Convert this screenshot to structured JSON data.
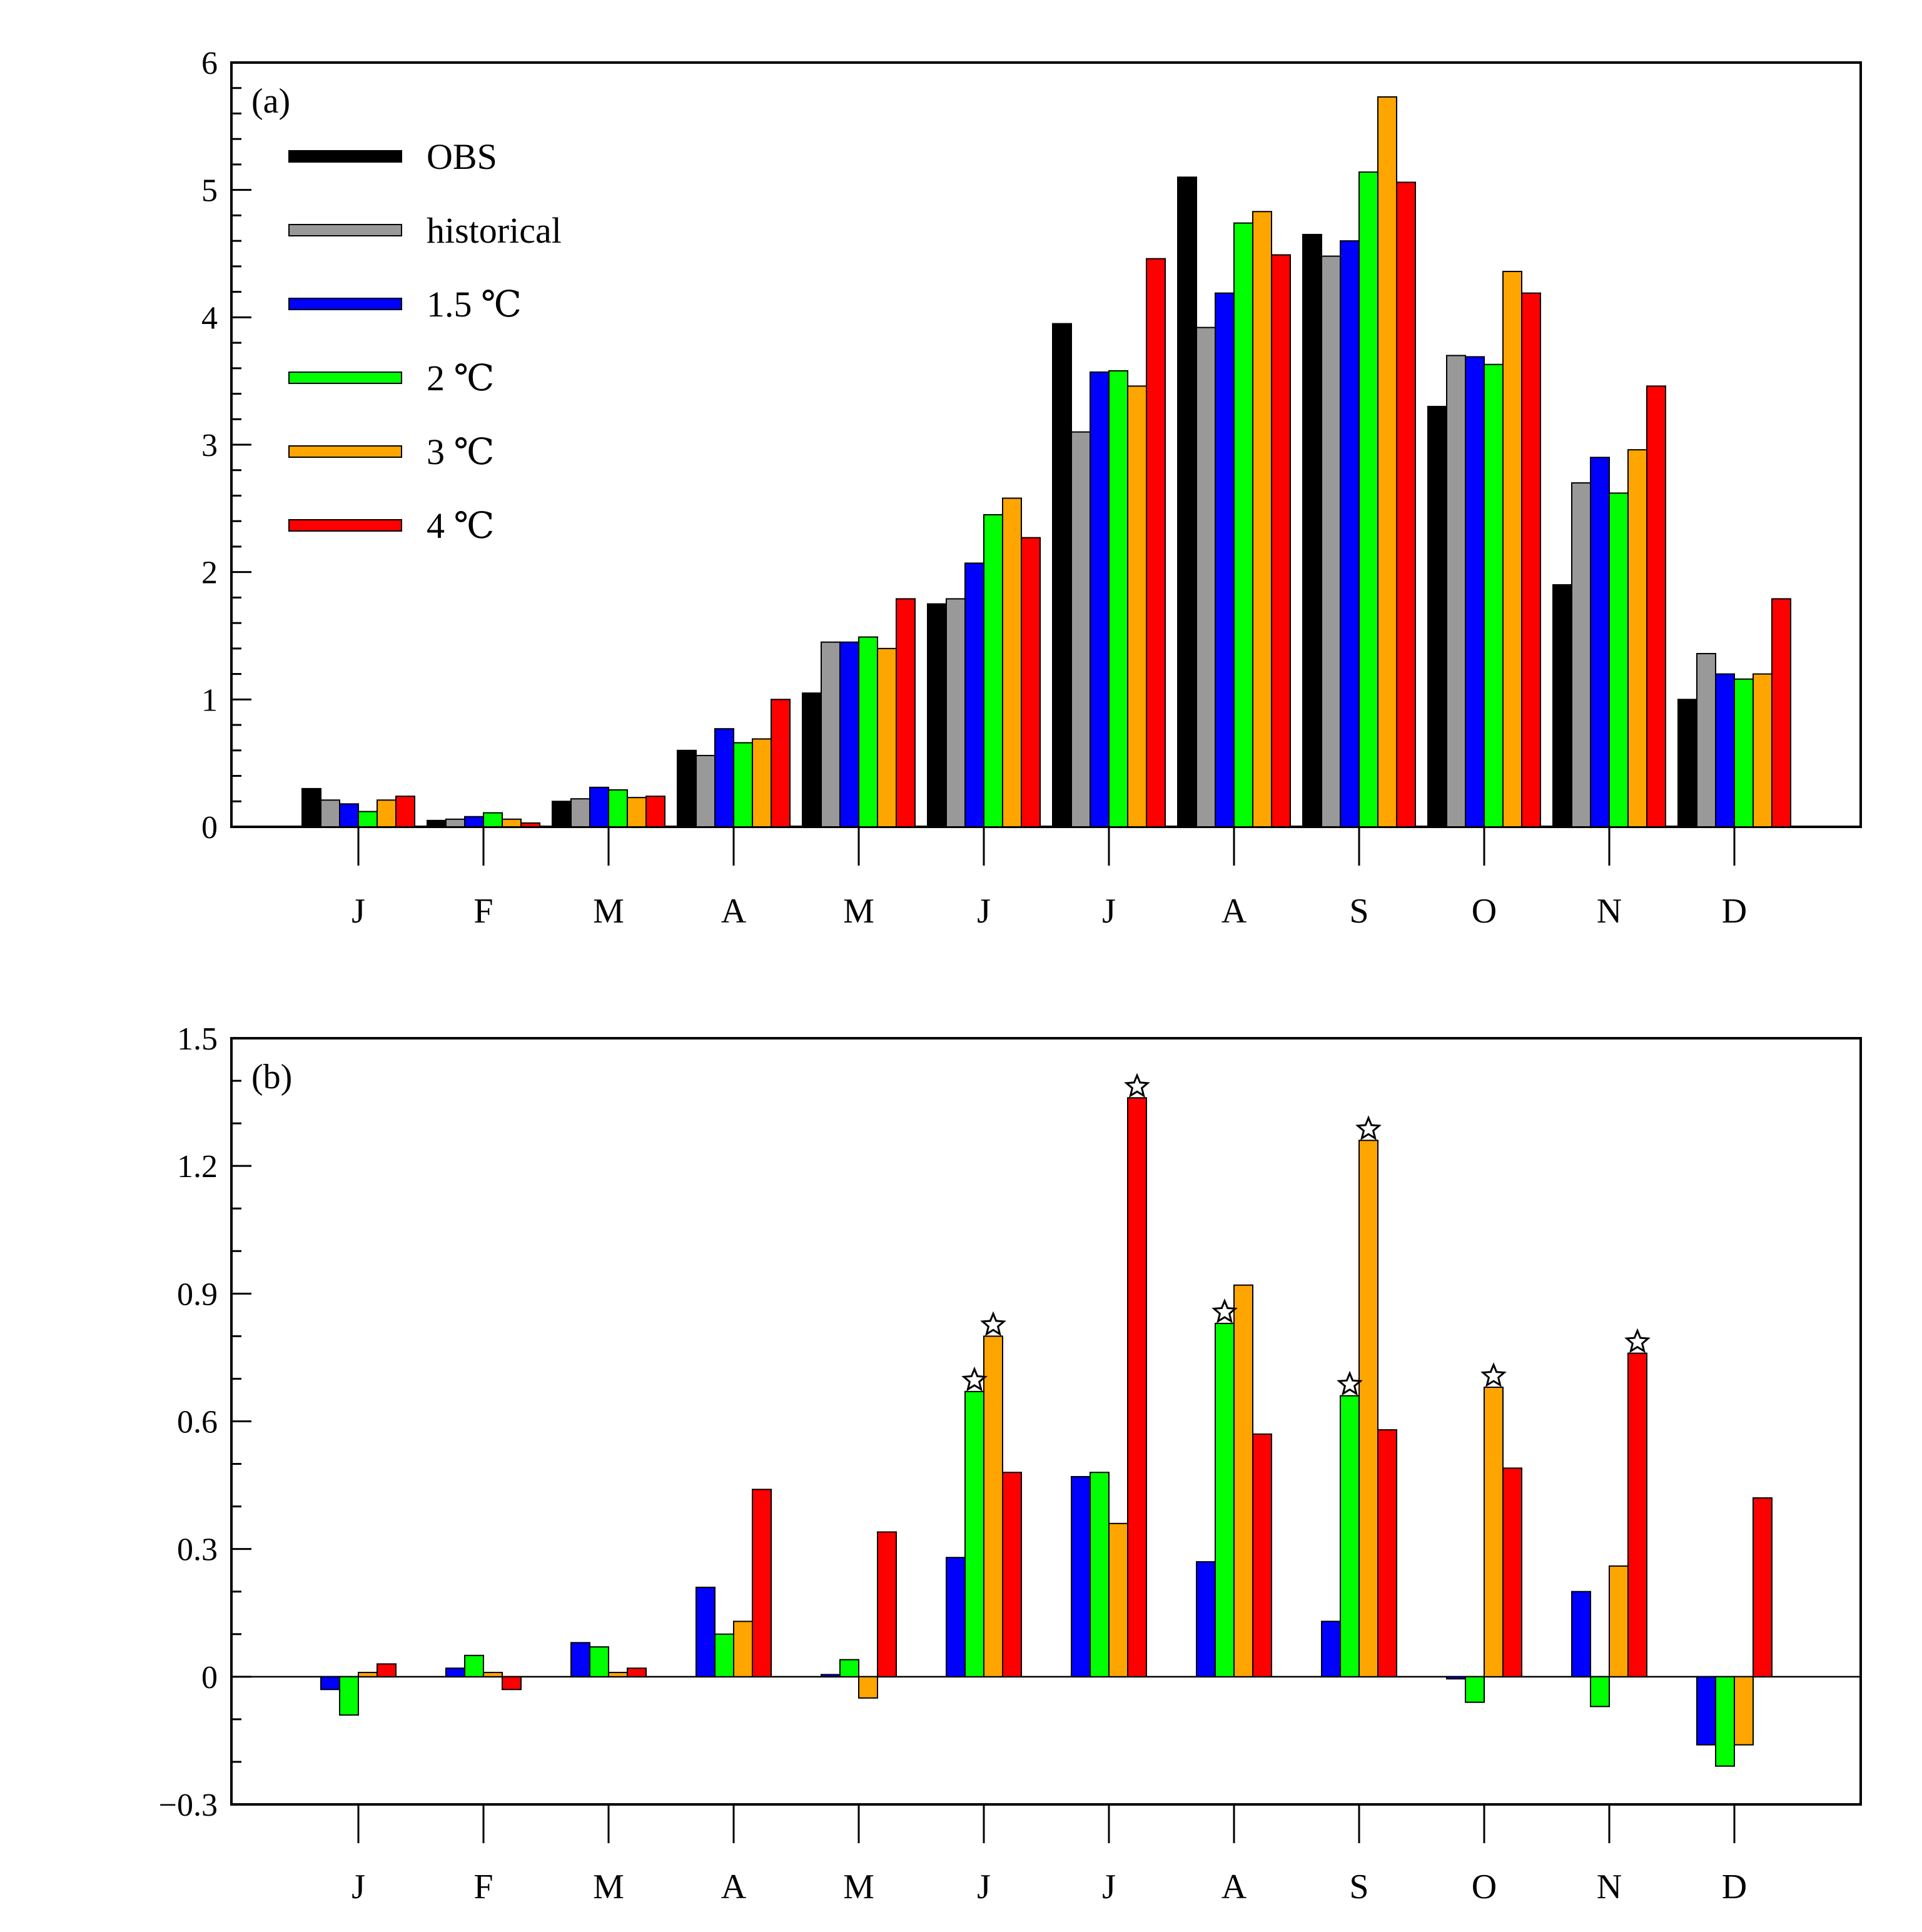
{
  "chart_data": [
    {
      "type": "bar",
      "panel_label": "(a)",
      "categories": [
        "J",
        "F",
        "M",
        "A",
        "M",
        "J",
        "J",
        "A",
        "S",
        "O",
        "N",
        "D"
      ],
      "ylim": [
        0,
        6
      ],
      "yticks": [
        "0",
        "1",
        "2",
        "3",
        "4",
        "5",
        "6"
      ],
      "legend_position": "top-left",
      "series": [
        {
          "name": "OBS",
          "color": "#000000",
          "values": [
            0.3,
            0.05,
            0.2,
            0.6,
            1.05,
            1.75,
            3.95,
            5.1,
            4.65,
            3.3,
            1.9,
            1.0
          ]
        },
        {
          "name": "historical",
          "color": "#999999",
          "values": [
            0.21,
            0.06,
            0.22,
            0.56,
            1.45,
            1.79,
            3.1,
            3.92,
            4.48,
            3.7,
            2.7,
            1.36
          ]
        },
        {
          "name": "1.5 ℃",
          "color": "#0000ff",
          "values": [
            0.18,
            0.08,
            0.31,
            0.77,
            1.45,
            2.07,
            3.57,
            4.19,
            4.6,
            3.69,
            2.9,
            1.2
          ]
        },
        {
          "name": "2 ℃",
          "color": "#00ff00",
          "values": [
            0.12,
            0.11,
            0.29,
            0.66,
            1.49,
            2.45,
            3.58,
            4.74,
            5.14,
            3.63,
            2.62,
            1.16
          ]
        },
        {
          "name": "3 ℃",
          "color": "#ffa500",
          "values": [
            0.21,
            0.06,
            0.23,
            0.69,
            1.4,
            2.58,
            3.46,
            4.83,
            5.73,
            4.36,
            2.96,
            1.2
          ]
        },
        {
          "name": "4 ℃",
          "color": "#ff0000",
          "values": [
            0.24,
            0.03,
            0.24,
            1.0,
            1.79,
            2.27,
            4.46,
            4.49,
            5.06,
            4.19,
            3.46,
            1.79
          ]
        }
      ]
    },
    {
      "type": "bar",
      "panel_label": "(b)",
      "categories": [
        "J",
        "F",
        "M",
        "A",
        "M",
        "J",
        "J",
        "A",
        "S",
        "O",
        "N",
        "D"
      ],
      "ylim": [
        -0.3,
        1.5
      ],
      "yticks": [
        "−0.3",
        "0",
        "0.3",
        "0.6",
        "0.9",
        "1.2",
        "1.5"
      ],
      "series": [
        {
          "color": "#0000ff",
          "values": [
            -0.03,
            0.02,
            0.08,
            0.21,
            0.005,
            0.28,
            0.47,
            0.27,
            0.13,
            -0.005,
            0.2,
            -0.16
          ]
        },
        {
          "color": "#00ff00",
          "values": [
            -0.09,
            0.05,
            0.07,
            0.1,
            0.04,
            0.67,
            0.48,
            0.83,
            0.66,
            -0.06,
            -0.07,
            -0.21
          ]
        },
        {
          "color": "#ffa500",
          "values": [
            0.01,
            0.01,
            0.01,
            0.13,
            -0.05,
            0.8,
            0.36,
            0.92,
            1.26,
            0.68,
            0.26,
            -0.16
          ]
        },
        {
          "color": "#ff0000",
          "values": [
            0.03,
            -0.03,
            0.02,
            0.44,
            0.34,
            0.48,
            1.36,
            0.57,
            0.58,
            0.49,
            0.76,
            0.42
          ]
        }
      ],
      "significance_markers": [
        {
          "month_index": 5,
          "series_index": 1
        },
        {
          "month_index": 5,
          "series_index": 2
        },
        {
          "month_index": 6,
          "series_index": 3
        },
        {
          "month_index": 7,
          "series_index": 1
        },
        {
          "month_index": 8,
          "series_index": 1
        },
        {
          "month_index": 8,
          "series_index": 2
        },
        {
          "month_index": 9,
          "series_index": 2
        },
        {
          "month_index": 10,
          "series_index": 3
        }
      ]
    }
  ]
}
